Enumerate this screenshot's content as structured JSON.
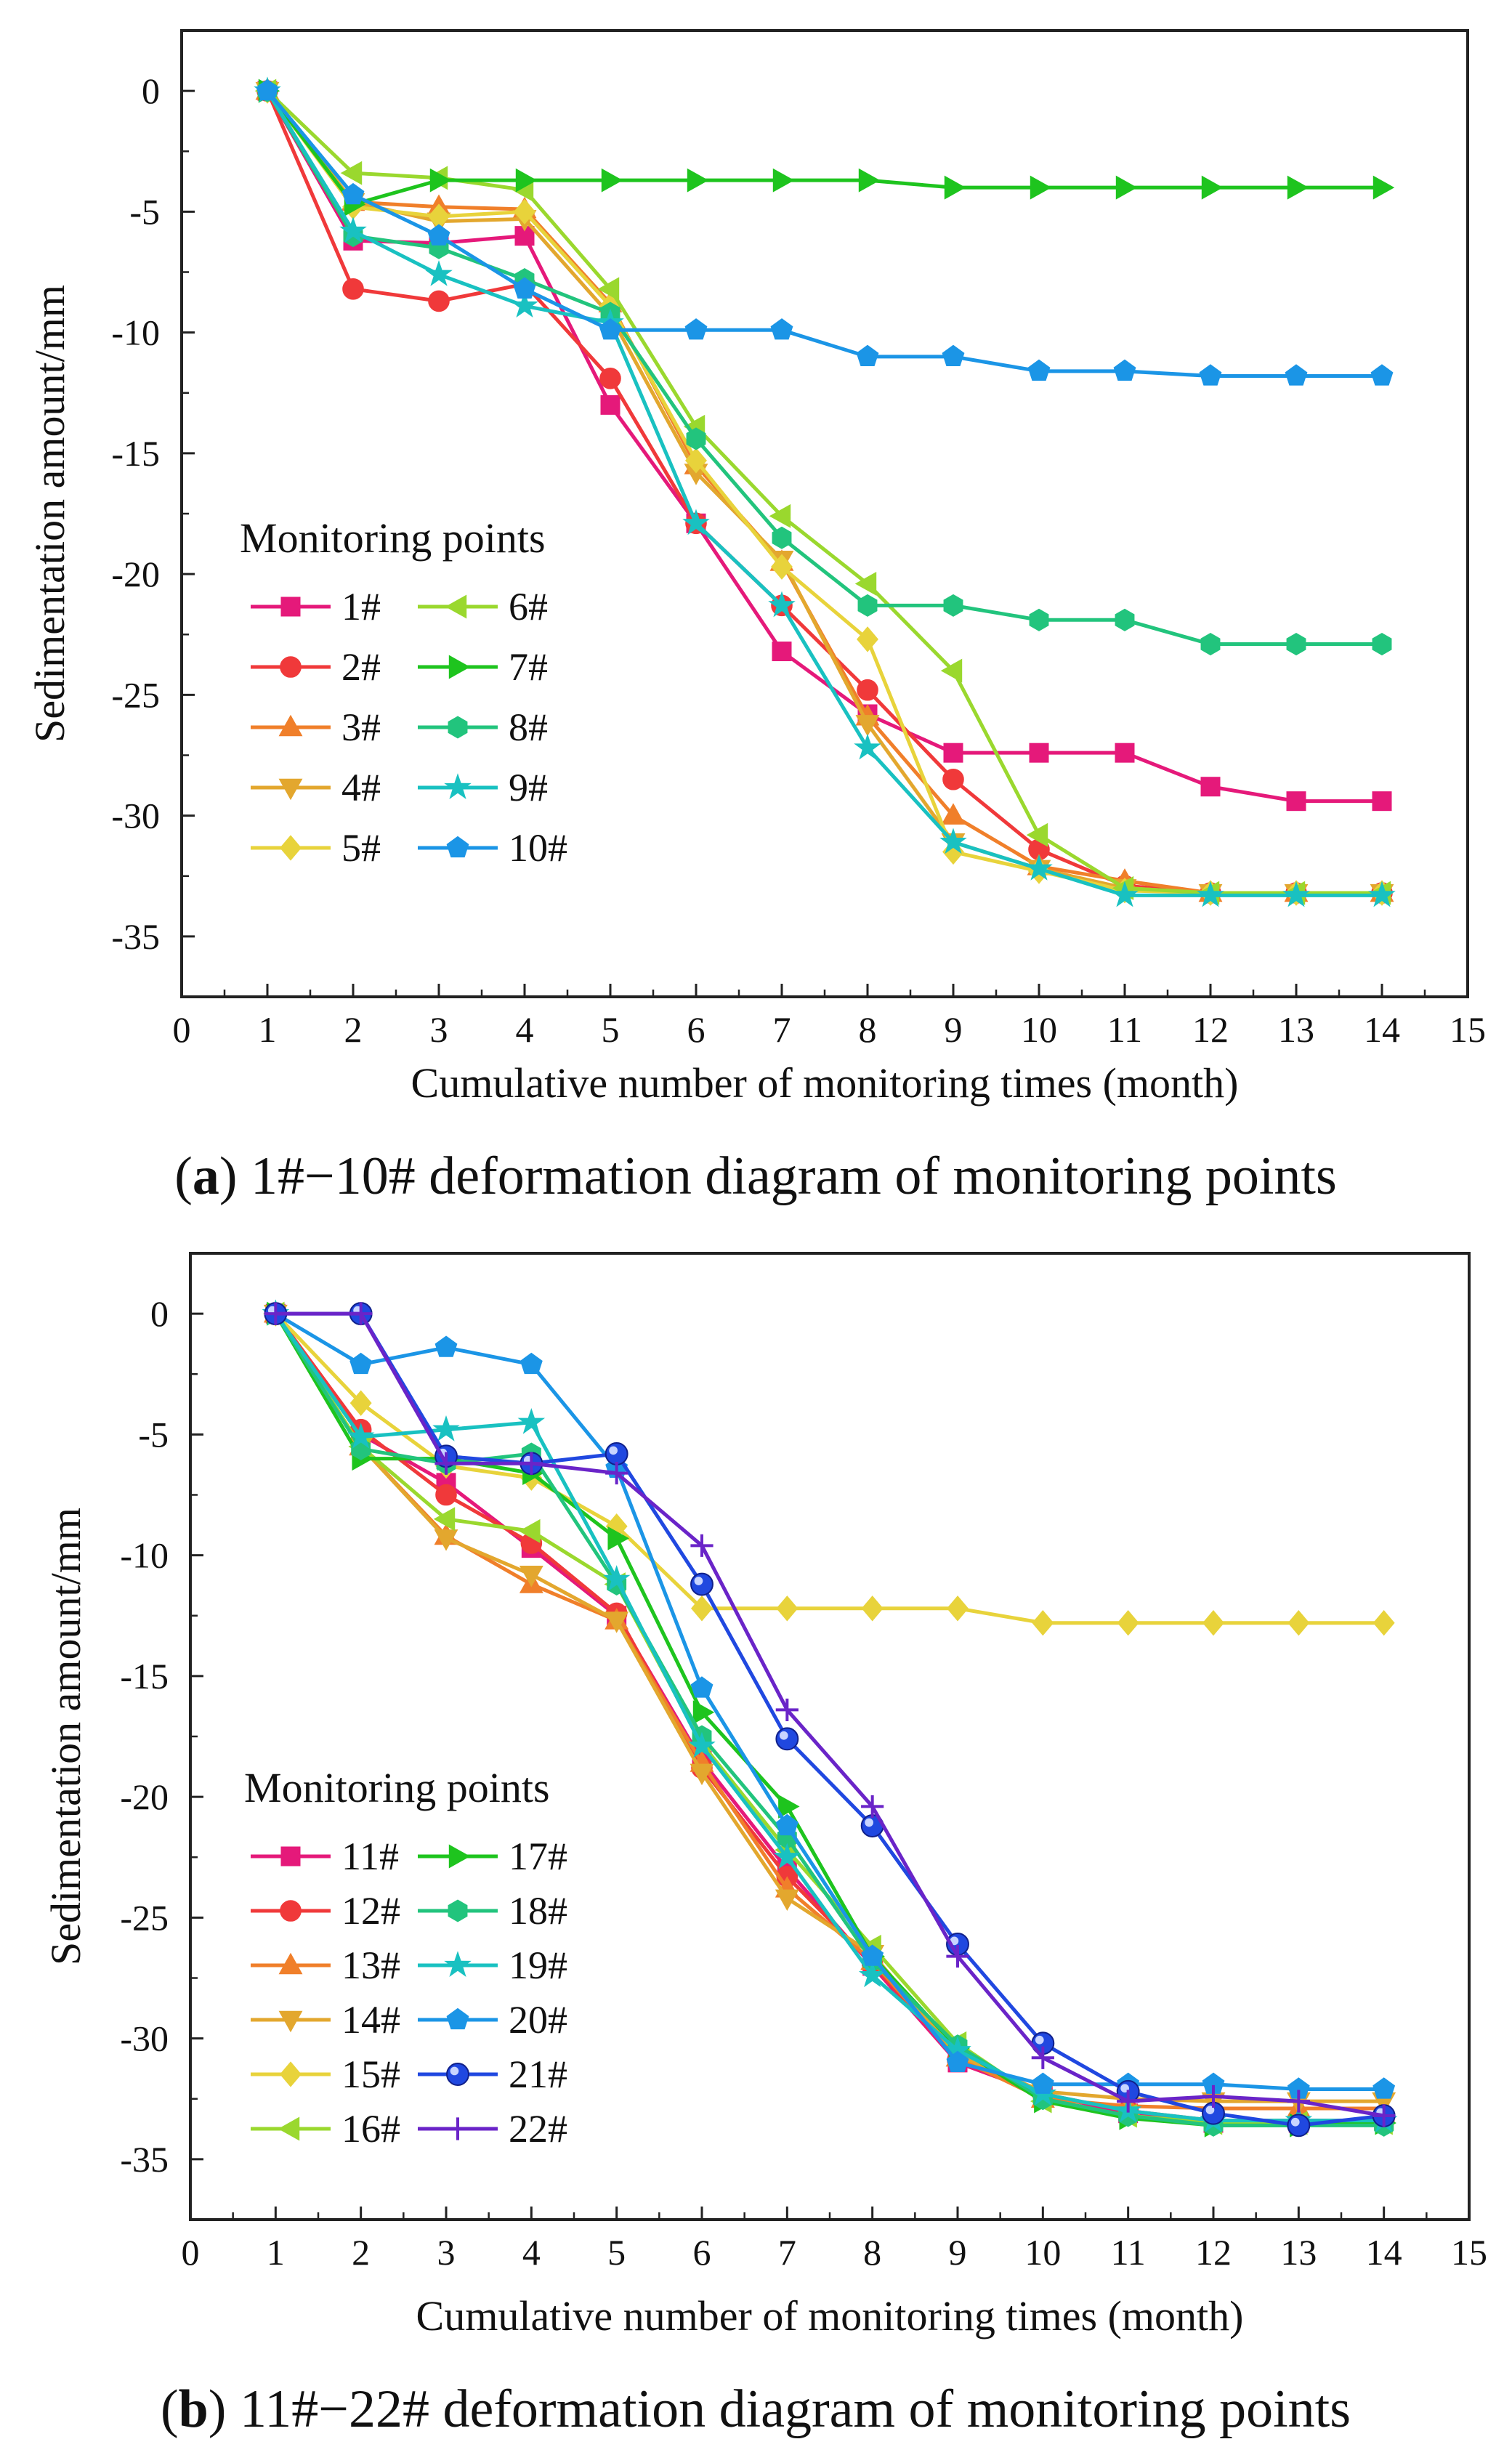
{
  "chart_data": [
    {
      "type": "line",
      "panel_label": "a",
      "caption": "1#−10# deformation diagram of monitoring points",
      "xlabel": "Cumulative number of monitoring times (month)",
      "ylabel": "Sedimentation amount/mm",
      "xlim": [
        0,
        15
      ],
      "ylim": [
        -37.5,
        2.5
      ],
      "xticks": [
        "0",
        "1",
        "2",
        "3",
        "4",
        "5",
        "6",
        "7",
        "8",
        "9",
        "10",
        "11",
        "12",
        "13",
        "14",
        "15"
      ],
      "yticks": [
        "0",
        "-5",
        "-10",
        "-15",
        "-20",
        "-25",
        "-30",
        "-35"
      ],
      "legend_title": "Monitoring points",
      "x": [
        1,
        2,
        3,
        4,
        5,
        6,
        7,
        8,
        9,
        10,
        11,
        12,
        13,
        14
      ],
      "series": [
        {
          "name": "1#",
          "marker": "square",
          "color": "#e5197a",
          "values": [
            0,
            -6.2,
            -6.3,
            -6.0,
            -13.0,
            -17.9,
            -23.2,
            -25.8,
            -27.4,
            -27.4,
            -27.4,
            -28.8,
            -29.4,
            -29.4
          ]
        },
        {
          "name": "2#",
          "marker": "circle",
          "color": "#f0393a",
          "values": [
            0,
            -8.2,
            -8.7,
            -8.0,
            -11.9,
            -17.9,
            -21.3,
            -24.8,
            -28.5,
            -31.4,
            -32.9,
            -33.2,
            -33.2,
            -33.2
          ]
        },
        {
          "name": "3#",
          "marker": "triangle-up",
          "color": "#f07f2a",
          "values": [
            0,
            -4.6,
            -4.8,
            -4.9,
            -8.8,
            -15.5,
            -19.5,
            -25.9,
            -30.0,
            -32.1,
            -32.7,
            -33.2,
            -33.2,
            -33.2
          ]
        },
        {
          "name": "4#",
          "marker": "triangle-down",
          "color": "#e3a72e",
          "values": [
            0,
            -4.6,
            -5.4,
            -5.3,
            -9.3,
            -15.8,
            -19.4,
            -26.2,
            -31.1,
            -32.2,
            -33.0,
            -33.2,
            -33.2,
            -33.2
          ]
        },
        {
          "name": "5#",
          "marker": "diamond",
          "color": "#e8d33b",
          "values": [
            0,
            -4.8,
            -5.2,
            -5.0,
            -8.9,
            -15.3,
            -19.7,
            -22.7,
            -31.5,
            -32.3,
            -33.1,
            -33.2,
            -33.2,
            -33.2
          ]
        },
        {
          "name": "6#",
          "marker": "triangle-left",
          "color": "#9ad82e",
          "values": [
            0,
            -3.4,
            -3.6,
            -4.1,
            -8.2,
            -13.9,
            -17.6,
            -20.4,
            -24.0,
            -30.8,
            -33.0,
            -33.2,
            -33.2,
            -33.2
          ]
        },
        {
          "name": "7#",
          "marker": "triangle-right",
          "color": "#1ec41e",
          "values": [
            0,
            -4.7,
            -3.7,
            -3.7,
            -3.7,
            -3.7,
            -3.7,
            -3.7,
            -4.0,
            -4.0,
            -4.0,
            -4.0,
            -4.0,
            -4.0
          ]
        },
        {
          "name": "8#",
          "marker": "hexagon",
          "color": "#22c47d",
          "values": [
            0,
            -6.0,
            -6.5,
            -7.8,
            -9.2,
            -14.4,
            -18.5,
            -21.3,
            -21.3,
            -21.9,
            -21.9,
            -22.9,
            -22.9,
            -22.9
          ]
        },
        {
          "name": "9#",
          "marker": "star",
          "color": "#19c1c1",
          "values": [
            0,
            -5.8,
            -7.6,
            -8.9,
            -9.6,
            -17.9,
            -21.3,
            -27.2,
            -31.1,
            -32.2,
            -33.3,
            -33.3,
            -33.3,
            -33.3
          ]
        },
        {
          "name": "10#",
          "marker": "pentagon",
          "color": "#1b95e6",
          "values": [
            0,
            -4.3,
            -6.0,
            -8.2,
            -9.9,
            -9.9,
            -9.9,
            -11.0,
            -11.0,
            -11.6,
            -11.6,
            -11.8,
            -11.8,
            -11.8
          ]
        }
      ]
    },
    {
      "type": "line",
      "panel_label": "b",
      "caption": "11#−22# deformation diagram of monitoring points",
      "xlabel": "Cumulative number of monitoring times (month)",
      "ylabel": "Sedimentation amount/mm",
      "xlim": [
        0,
        15
      ],
      "ylim": [
        -37.5,
        2.5
      ],
      "xticks": [
        "0",
        "1",
        "2",
        "3",
        "4",
        "5",
        "6",
        "7",
        "8",
        "9",
        "10",
        "11",
        "12",
        "13",
        "14",
        "15"
      ],
      "yticks": [
        "0",
        "-5",
        "-10",
        "-15",
        "-20",
        "-25",
        "-30",
        "-35"
      ],
      "legend_title": "Monitoring points",
      "x": [
        1,
        2,
        3,
        4,
        5,
        6,
        7,
        8,
        9,
        10,
        11,
        12,
        13,
        14
      ],
      "series": [
        {
          "name": "11#",
          "marker": "square",
          "color": "#e5197a",
          "values": [
            0,
            -5.0,
            -7.0,
            -9.7,
            -12.5,
            -18.5,
            -23.0,
            -27.0,
            -31.0,
            -32.3,
            -33.1,
            -33.5,
            -33.5,
            -33.4
          ]
        },
        {
          "name": "12#",
          "marker": "circle",
          "color": "#f0393a",
          "values": [
            0,
            -4.8,
            -7.5,
            -9.5,
            -12.4,
            -18.8,
            -23.3,
            -26.9,
            -30.9,
            -32.3,
            -33.0,
            -33.4,
            -33.4,
            -33.4
          ]
        },
        {
          "name": "13#",
          "marker": "triangle-up",
          "color": "#f07f2a",
          "values": [
            0,
            -5.5,
            -9.2,
            -11.2,
            -12.7,
            -18.6,
            -23.8,
            -26.8,
            -30.8,
            -32.5,
            -32.8,
            -32.9,
            -32.9,
            -32.9
          ]
        },
        {
          "name": "14#",
          "marker": "triangle-down",
          "color": "#e3a72e",
          "values": [
            0,
            -5.5,
            -9.3,
            -10.8,
            -12.7,
            -19.0,
            -24.2,
            -26.5,
            -30.7,
            -32.2,
            -32.5,
            -32.6,
            -32.6,
            -32.6
          ]
        },
        {
          "name": "15#",
          "marker": "diamond",
          "color": "#e8d33b",
          "values": [
            0,
            -3.7,
            -6.3,
            -6.8,
            -8.8,
            -12.2,
            -12.2,
            -12.2,
            -12.2,
            -12.8,
            -12.8,
            -12.8,
            -12.8,
            -12.8
          ]
        },
        {
          "name": "16#",
          "marker": "triangle-left",
          "color": "#9ad82e",
          "values": [
            0,
            -5.5,
            -8.5,
            -9.0,
            -11.2,
            -17.8,
            -22.2,
            -26.2,
            -30.2,
            -32.6,
            -33.2,
            -33.5,
            -33.5,
            -33.5
          ]
        },
        {
          "name": "17#",
          "marker": "triangle-right",
          "color": "#1ec41e",
          "values": [
            0,
            -6.0,
            -6.0,
            -6.6,
            -9.3,
            -16.5,
            -20.4,
            -26.6,
            -30.4,
            -32.6,
            -33.3,
            -33.6,
            -33.6,
            -33.5
          ]
        },
        {
          "name": "18#",
          "marker": "hexagon",
          "color": "#22c47d",
          "values": [
            0,
            -5.6,
            -6.2,
            -5.8,
            -11.2,
            -17.5,
            -21.7,
            -26.8,
            -30.3,
            -32.5,
            -33.2,
            -33.6,
            -33.6,
            -33.6
          ]
        },
        {
          "name": "19#",
          "marker": "star",
          "color": "#19c1c1",
          "values": [
            0,
            -5.1,
            -4.8,
            -4.5,
            -11.0,
            -17.9,
            -22.5,
            -27.4,
            -30.5,
            -32.3,
            -33.0,
            -33.4,
            -33.4,
            -33.4
          ]
        },
        {
          "name": "20#",
          "marker": "pentagon",
          "color": "#1b95e6",
          "values": [
            0,
            -2.1,
            -1.4,
            -2.1,
            -6.4,
            -15.5,
            -21.2,
            -26.6,
            -31.0,
            -31.9,
            -31.9,
            -31.9,
            -32.1,
            -32.1
          ]
        },
        {
          "name": "21#",
          "marker": "sphere",
          "color": "#2048e0",
          "values": [
            0,
            0,
            -5.9,
            -6.2,
            -5.8,
            -11.2,
            -17.6,
            -21.2,
            -26.1,
            -30.2,
            -32.2,
            -33.1,
            -33.6,
            -33.2
          ]
        },
        {
          "name": "22#",
          "marker": "plus",
          "color": "#6a24c8",
          "values": [
            0,
            0,
            -6.2,
            -6.2,
            -6.6,
            -9.6,
            -16.4,
            -20.4,
            -26.6,
            -30.8,
            -32.6,
            -32.4,
            -32.6,
            -33.2
          ]
        }
      ]
    }
  ]
}
